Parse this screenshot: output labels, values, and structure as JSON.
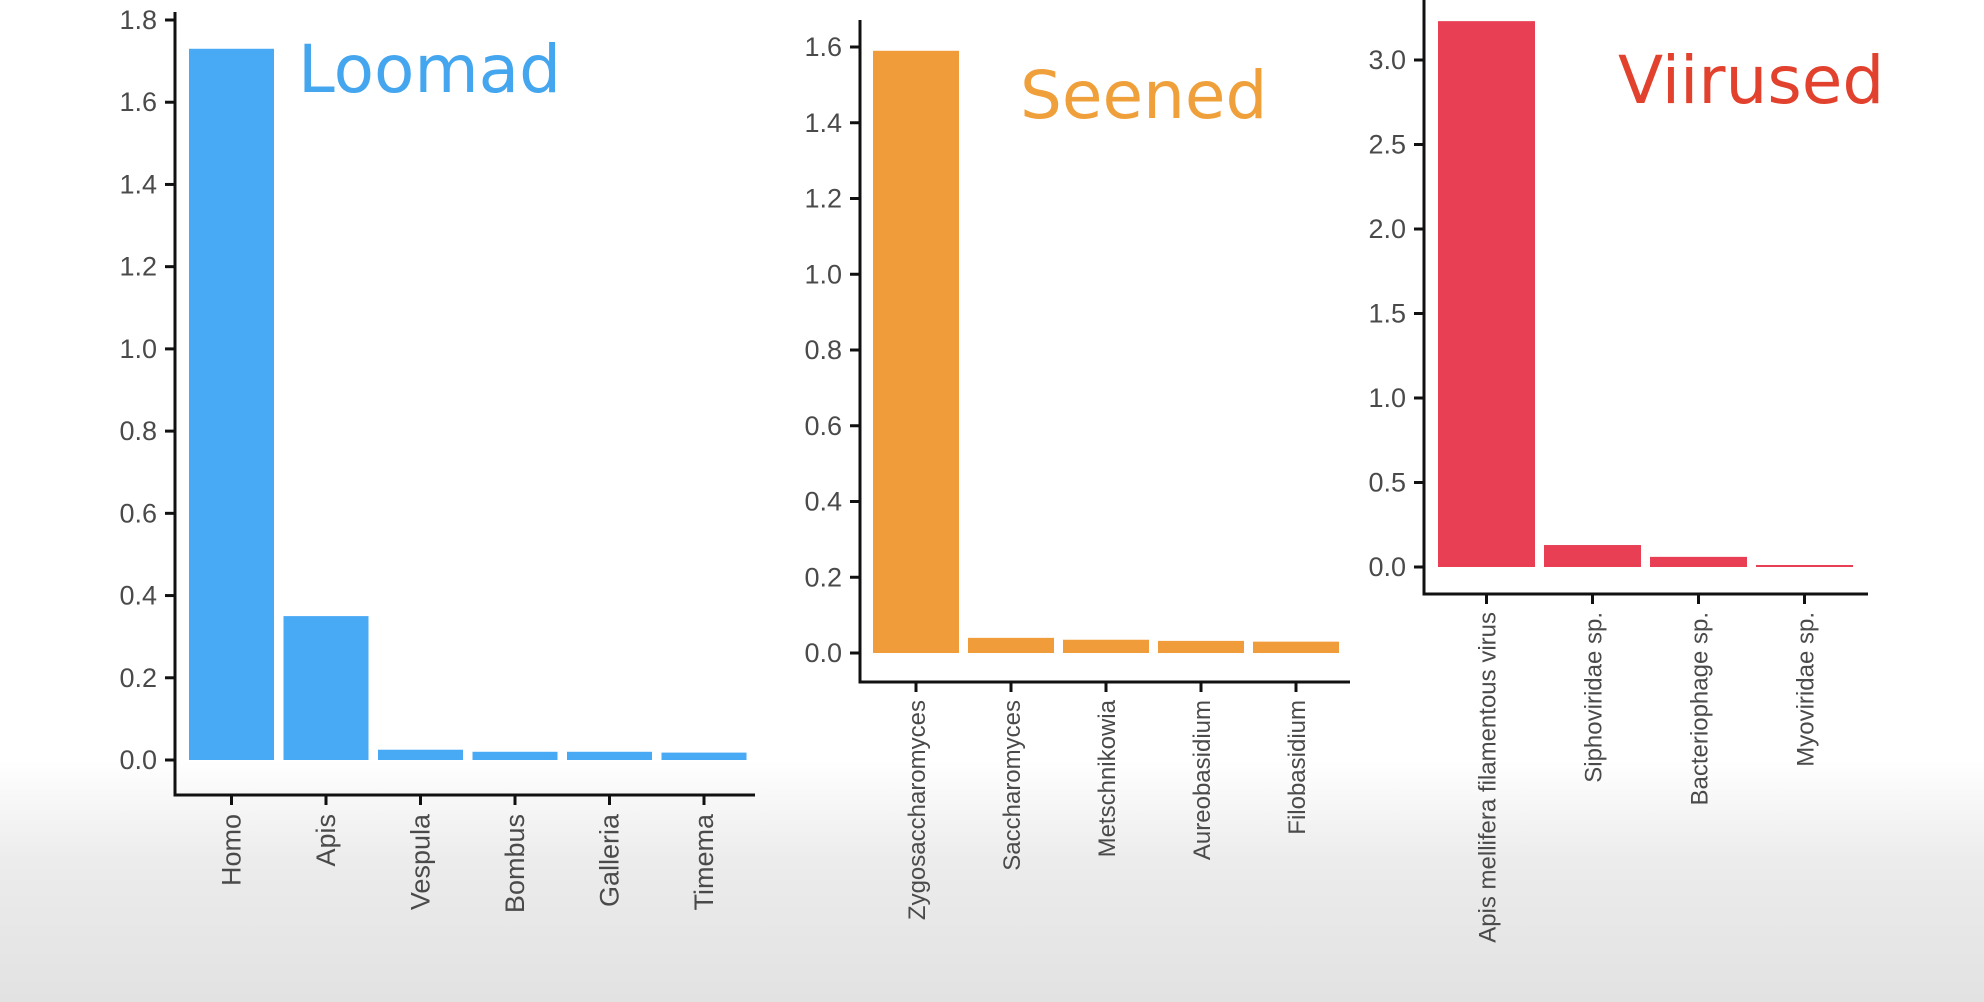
{
  "chart_data": [
    {
      "type": "bar",
      "title": "Loomad",
      "title_color": "#44a6ef",
      "bar_color": "#48a9f5",
      "categories": [
        "Homo",
        "Apis",
        "Vespula",
        "Bombus",
        "Galleria",
        "Timema"
      ],
      "values": [
        1.73,
        0.35,
        0.025,
        0.02,
        0.02,
        0.018
      ],
      "ylim": [
        0,
        1.8
      ],
      "yticks": [
        "0.0",
        "0.2",
        "0.4",
        "0.6",
        "0.8",
        "1.0",
        "1.2",
        "1.4",
        "1.6",
        "1.8"
      ],
      "xlabel": "",
      "ylabel": ""
    },
    {
      "type": "bar",
      "title": "Seened",
      "title_color": "#f0a03a",
      "bar_color": "#f09c3a",
      "categories": [
        "Zygosaccharomyces",
        "Saccharomyces",
        "Metschnikowia",
        "Aureobasidium",
        "Filobasidium"
      ],
      "values": [
        1.59,
        0.04,
        0.035,
        0.032,
        0.03
      ],
      "ylim": [
        0,
        1.6
      ],
      "yticks": [
        "0.0",
        "0.2",
        "0.4",
        "0.6",
        "0.8",
        "1.0",
        "1.2",
        "1.4",
        "1.6"
      ],
      "xlabel": "",
      "ylabel": ""
    },
    {
      "type": "bar",
      "title": "Viirused",
      "title_color": "#e2412d",
      "bar_color": "#e83f55",
      "categories": [
        "Apis mellifera filamentous virus",
        "Siphoviridae sp.",
        "Bacteriophage sp.",
        "Myoviridae sp."
      ],
      "values": [
        3.23,
        0.13,
        0.06,
        0.01
      ],
      "ylim": [
        0,
        3.0
      ],
      "yticks": [
        "0.0",
        "0.5",
        "1.0",
        "1.5",
        "2.0",
        "2.5",
        "3.0"
      ],
      "xlabel": "",
      "ylabel": ""
    }
  ]
}
